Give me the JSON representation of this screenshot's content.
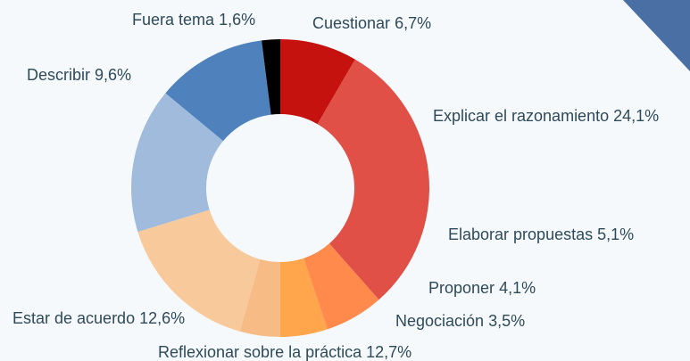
{
  "chart_data": {
    "type": "donut",
    "categories": [
      "Cuestionar",
      "Explicar el razonamiento",
      "Elaborar propuestas",
      "Proponer",
      "Negociación",
      "Reflexionar sobre la práctica",
      "Estar de acuerdo",
      "Describir",
      "Fuera tema"
    ],
    "values": [
      6.7,
      24.1,
      5.1,
      4.1,
      3.5,
      12.7,
      12.6,
      9.6,
      1.6
    ],
    "value_labels": [
      "6,7%",
      "24,1%",
      "5,1%",
      "4,1%",
      "3,5%",
      "12,7%",
      "12,6%",
      "9,6%",
      "1,6%"
    ],
    "colors": [
      "#c5120f",
      "#e05046",
      "#ff8a4c",
      "#ffa64d",
      "#f7bb85",
      "#f8c99a",
      "#a0bbdc",
      "#4f81bd",
      "#000000"
    ]
  }
}
